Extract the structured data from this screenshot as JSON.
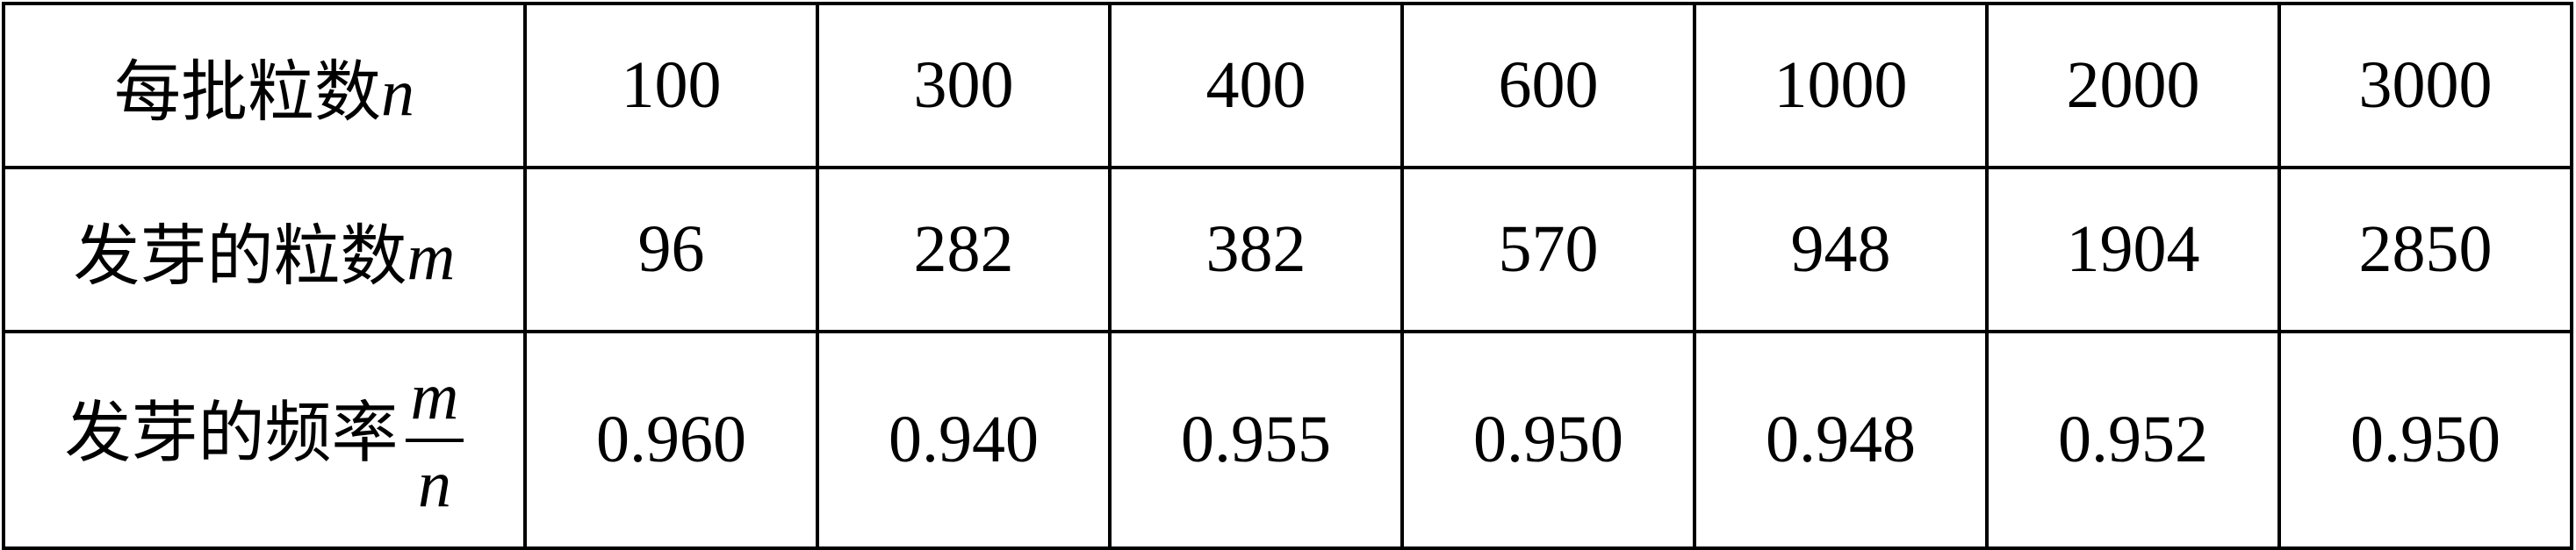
{
  "table": {
    "rows": [
      {
        "label_text": "每批粒数",
        "label_var": "n",
        "values": [
          "100",
          "300",
          "400",
          "600",
          "1000",
          "2000",
          "3000"
        ]
      },
      {
        "label_text": "发芽的粒数",
        "label_var": "m",
        "values": [
          "96",
          "282",
          "382",
          "570",
          "948",
          "1904",
          "2850"
        ]
      },
      {
        "label_text": "发芽的频率",
        "label_frac_num": "m",
        "label_frac_den": "n",
        "values": [
          "0.960",
          "0.940",
          "0.955",
          "0.950",
          "0.948",
          "0.952",
          "0.950"
        ]
      }
    ]
  }
}
